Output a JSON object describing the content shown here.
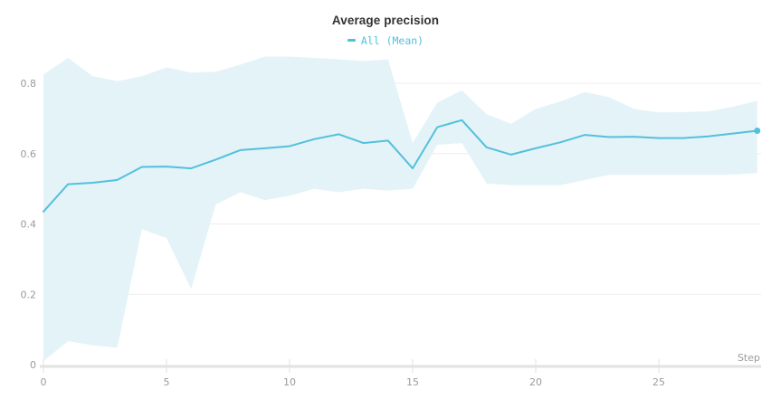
{
  "header": {
    "title": "Average precision"
  },
  "legend": {
    "items": [
      {
        "label": "All (Mean)",
        "swatch_color": "#4fc1dc"
      }
    ]
  },
  "colors": {
    "line": "#53c0dc",
    "band_fill": "#e4f3f8",
    "gridline": "#ededed",
    "axis_line": "#e2e2e2",
    "tick_text": "#9b9b9b",
    "title_text": "#333333",
    "background": "#ffffff"
  },
  "chart_data": {
    "type": "line",
    "title": "Average precision",
    "xlabel": "Step",
    "ylabel": "",
    "legend_position": "top-center",
    "grid": true,
    "xlim": [
      0,
      29
    ],
    "ylim": [
      0,
      0.9
    ],
    "x_ticks": [
      0,
      5,
      10,
      15,
      20,
      25
    ],
    "y_ticks": [
      0,
      0.2,
      0.4,
      0.6,
      0.8
    ],
    "x": [
      0,
      1,
      2,
      3,
      4,
      5,
      6,
      7,
      8,
      9,
      10,
      11,
      12,
      13,
      14,
      15,
      16,
      17,
      18,
      19,
      20,
      21,
      22,
      23,
      24,
      25,
      26,
      27,
      28,
      29
    ],
    "series": [
      {
        "name": "All (Mean)",
        "values": [
          0.435,
          0.513,
          0.517,
          0.525,
          0.562,
          0.563,
          0.558,
          0.583,
          0.61,
          0.615,
          0.621,
          0.641,
          0.655,
          0.63,
          0.637,
          0.558,
          0.675,
          0.695,
          0.618,
          0.597,
          0.615,
          0.632,
          0.653,
          0.647,
          0.648,
          0.644,
          0.644,
          0.649,
          0.657,
          0.665
        ],
        "band_upper": [
          0.825,
          0.872,
          0.82,
          0.806,
          0.82,
          0.845,
          0.83,
          0.833,
          0.853,
          0.876,
          0.876,
          0.872,
          0.868,
          0.863,
          0.868,
          0.63,
          0.745,
          0.78,
          0.712,
          0.685,
          0.727,
          0.748,
          0.775,
          0.76,
          0.727,
          0.717,
          0.718,
          0.72,
          0.733,
          0.75
        ],
        "band_lower": [
          0.01,
          0.067,
          0.055,
          0.048,
          0.385,
          0.36,
          0.215,
          0.455,
          0.49,
          0.468,
          0.48,
          0.5,
          0.49,
          0.5,
          0.495,
          0.5,
          0.625,
          0.63,
          0.515,
          0.51,
          0.51,
          0.51,
          0.525,
          0.54,
          0.54,
          0.54,
          0.54,
          0.54,
          0.54,
          0.545
        ],
        "end_marker": true
      }
    ]
  }
}
